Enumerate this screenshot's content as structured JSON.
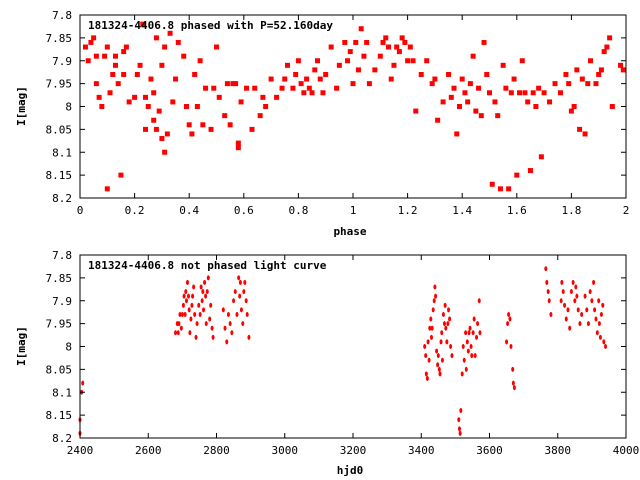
{
  "chart_data": [
    {
      "type": "scatter",
      "title": "181324-4406.8 phased with P=52.160day",
      "xlabel": "phase",
      "ylabel": "I[mag]",
      "xlim": [
        0,
        2
      ],
      "ylim": [
        8.2,
        7.8
      ],
      "y_inverted": true,
      "xticks": [
        "0",
        "0.2",
        "0.4",
        "0.6",
        "0.8",
        "1",
        "1.2",
        "1.4",
        "1.6",
        "1.8",
        "2"
      ],
      "yticks": [
        "7.8",
        "7.85",
        "7.9",
        "7.95",
        "8",
        "8.05",
        "8.1",
        "8.15",
        "8.2"
      ],
      "grid": false,
      "marker_color": "#ff0000",
      "points": [
        [
          0.02,
          7.87
        ],
        [
          0.03,
          7.9
        ],
        [
          0.04,
          7.86
        ],
        [
          0.05,
          7.85
        ],
        [
          0.06,
          7.89
        ],
        [
          0.06,
          7.95
        ],
        [
          0.07,
          7.98
        ],
        [
          0.08,
          8.0
        ],
        [
          0.09,
          7.89
        ],
        [
          0.1,
          7.87
        ],
        [
          0.1,
          8.18
        ],
        [
          0.11,
          7.97
        ],
        [
          0.12,
          7.93
        ],
        [
          0.13,
          7.91
        ],
        [
          0.13,
          7.89
        ],
        [
          0.14,
          7.95
        ],
        [
          0.15,
          8.15
        ],
        [
          0.16,
          7.93
        ],
        [
          0.16,
          7.88
        ],
        [
          0.17,
          7.87
        ],
        [
          0.18,
          7.99
        ],
        [
          0.2,
          7.98
        ],
        [
          0.21,
          7.93
        ],
        [
          0.22,
          7.91
        ],
        [
          0.23,
          7.82
        ],
        [
          0.24,
          7.98
        ],
        [
          0.24,
          8.05
        ],
        [
          0.25,
          8.0
        ],
        [
          0.26,
          7.94
        ],
        [
          0.27,
          7.97
        ],
        [
          0.27,
          8.03
        ],
        [
          0.28,
          7.85
        ],
        [
          0.28,
          8.05
        ],
        [
          0.29,
          8.01
        ],
        [
          0.3,
          7.91
        ],
        [
          0.3,
          8.07
        ],
        [
          0.31,
          7.87
        ],
        [
          0.31,
          8.1
        ],
        [
          0.32,
          8.06
        ],
        [
          0.33,
          7.84
        ],
        [
          0.34,
          7.99
        ],
        [
          0.35,
          7.94
        ],
        [
          0.36,
          7.86
        ],
        [
          0.38,
          7.89
        ],
        [
          0.39,
          8.0
        ],
        [
          0.4,
          8.04
        ],
        [
          0.41,
          8.06
        ],
        [
          0.42,
          7.93
        ],
        [
          0.43,
          8.0
        ],
        [
          0.44,
          7.9
        ],
        [
          0.45,
          8.04
        ],
        [
          0.46,
          7.96
        ],
        [
          0.48,
          8.05
        ],
        [
          0.49,
          7.96
        ],
        [
          0.5,
          7.87
        ],
        [
          0.51,
          7.98
        ],
        [
          0.53,
          8.02
        ],
        [
          0.54,
          7.95
        ],
        [
          0.55,
          8.04
        ],
        [
          0.56,
          7.95
        ],
        [
          0.57,
          7.95
        ],
        [
          0.58,
          8.08
        ],
        [
          0.58,
          8.09
        ],
        [
          0.59,
          7.99
        ],
        [
          0.61,
          7.96
        ],
        [
          0.63,
          8.05
        ],
        [
          0.64,
          7.96
        ],
        [
          0.66,
          8.02
        ],
        [
          0.67,
          7.98
        ],
        [
          0.68,
          8.0
        ],
        [
          0.7,
          7.94
        ],
        [
          0.72,
          7.98
        ],
        [
          0.74,
          7.96
        ],
        [
          0.75,
          7.94
        ],
        [
          0.76,
          7.91
        ],
        [
          0.78,
          7.96
        ],
        [
          0.79,
          7.93
        ],
        [
          0.8,
          7.9
        ],
        [
          0.81,
          7.95
        ],
        [
          0.82,
          7.97
        ],
        [
          0.83,
          7.94
        ],
        [
          0.84,
          7.96
        ],
        [
          0.85,
          7.97
        ],
        [
          0.86,
          7.92
        ],
        [
          0.87,
          7.9
        ],
        [
          0.88,
          7.94
        ],
        [
          0.89,
          7.97
        ],
        [
          0.9,
          7.93
        ],
        [
          0.92,
          7.87
        ],
        [
          0.94,
          7.96
        ],
        [
          0.95,
          7.91
        ],
        [
          0.97,
          7.86
        ],
        [
          0.98,
          7.9
        ],
        [
          0.99,
          7.88
        ],
        [
          1.0,
          7.95
        ],
        [
          1.01,
          7.86
        ],
        [
          1.02,
          7.92
        ],
        [
          1.03,
          7.83
        ],
        [
          1.04,
          7.89
        ],
        [
          1.05,
          7.86
        ],
        [
          1.06,
          7.95
        ],
        [
          1.08,
          7.92
        ],
        [
          1.1,
          7.89
        ],
        [
          1.11,
          7.86
        ],
        [
          1.12,
          7.85
        ],
        [
          1.13,
          7.87
        ],
        [
          1.14,
          7.94
        ],
        [
          1.15,
          7.91
        ],
        [
          1.16,
          7.87
        ],
        [
          1.17,
          7.88
        ],
        [
          1.18,
          7.85
        ],
        [
          1.19,
          7.86
        ],
        [
          1.2,
          7.9
        ],
        [
          1.21,
          7.87
        ],
        [
          1.22,
          7.9
        ],
        [
          1.23,
          8.01
        ],
        [
          1.25,
          7.93
        ],
        [
          1.27,
          7.9
        ],
        [
          1.29,
          7.95
        ],
        [
          1.3,
          7.94
        ],
        [
          1.31,
          8.03
        ],
        [
          1.33,
          7.99
        ],
        [
          1.35,
          7.93
        ],
        [
          1.36,
          7.98
        ],
        [
          1.37,
          7.96
        ],
        [
          1.38,
          8.06
        ],
        [
          1.39,
          8.0
        ],
        [
          1.4,
          7.94
        ],
        [
          1.41,
          7.97
        ],
        [
          1.42,
          7.99
        ],
        [
          1.43,
          7.95
        ],
        [
          1.44,
          7.89
        ],
        [
          1.45,
          8.01
        ],
        [
          1.46,
          7.96
        ],
        [
          1.47,
          8.02
        ],
        [
          1.48,
          7.86
        ],
        [
          1.49,
          7.93
        ],
        [
          1.5,
          7.97
        ],
        [
          1.51,
          8.17
        ],
        [
          1.52,
          7.99
        ],
        [
          1.53,
          8.02
        ],
        [
          1.54,
          8.18
        ],
        [
          1.55,
          7.91
        ],
        [
          1.56,
          7.96
        ],
        [
          1.57,
          8.18
        ],
        [
          1.58,
          7.97
        ],
        [
          1.59,
          7.94
        ],
        [
          1.6,
          8.15
        ],
        [
          1.61,
          7.97
        ],
        [
          1.62,
          7.9
        ],
        [
          1.63,
          7.97
        ],
        [
          1.64,
          7.99
        ],
        [
          1.65,
          8.14
        ],
        [
          1.66,
          7.97
        ],
        [
          1.67,
          8.0
        ],
        [
          1.68,
          7.96
        ],
        [
          1.69,
          8.11
        ],
        [
          1.7,
          7.97
        ],
        [
          1.72,
          7.99
        ],
        [
          1.74,
          7.95
        ],
        [
          1.76,
          7.97
        ],
        [
          1.78,
          7.93
        ],
        [
          1.79,
          7.95
        ],
        [
          1.8,
          8.01
        ],
        [
          1.81,
          8.0
        ],
        [
          1.82,
          7.92
        ],
        [
          1.83,
          8.05
        ],
        [
          1.84,
          7.94
        ],
        [
          1.85,
          8.06
        ],
        [
          1.86,
          7.95
        ],
        [
          1.87,
          7.9
        ],
        [
          1.89,
          7.95
        ],
        [
          1.9,
          7.93
        ],
        [
          1.91,
          7.92
        ],
        [
          1.92,
          7.88
        ],
        [
          1.93,
          7.87
        ],
        [
          1.94,
          7.85
        ],
        [
          1.95,
          8.0
        ],
        [
          1.98,
          7.91
        ],
        [
          1.99,
          7.92
        ]
      ]
    },
    {
      "type": "scatter",
      "title": "181324-4406.8 not phased light curve",
      "xlabel": "hjd0",
      "ylabel": "I[mag]",
      "xlim": [
        2400,
        4000
      ],
      "ylim": [
        8.2,
        7.8
      ],
      "y_inverted": true,
      "xticks": [
        "2400",
        "2600",
        "2800",
        "3000",
        "3200",
        "3400",
        "3600",
        "3800",
        "4000"
      ],
      "yticks": [
        "7.8",
        "7.85",
        "7.9",
        "7.95",
        "8",
        "8.05",
        "8.1",
        "8.15",
        "8.2"
      ],
      "grid": false,
      "marker_color": "#ff0000",
      "points": [
        [
          2400,
          8.16
        ],
        [
          2400,
          8.19
        ],
        [
          2405,
          8.1
        ],
        [
          2408,
          8.08
        ],
        [
          2680,
          7.97
        ],
        [
          2685,
          7.95
        ],
        [
          2688,
          7.97
        ],
        [
          2690,
          7.95
        ],
        [
          2693,
          7.93
        ],
        [
          2697,
          7.96
        ],
        [
          2700,
          7.93
        ],
        [
          2703,
          7.91
        ],
        [
          2705,
          7.89
        ],
        [
          2708,
          7.93
        ],
        [
          2710,
          7.88
        ],
        [
          2712,
          7.9
        ],
        [
          2715,
          7.86
        ],
        [
          2718,
          7.89
        ],
        [
          2720,
          7.92
        ],
        [
          2722,
          7.97
        ],
        [
          2725,
          7.94
        ],
        [
          2728,
          7.91
        ],
        [
          2730,
          7.89
        ],
        [
          2733,
          7.87
        ],
        [
          2736,
          7.93
        ],
        [
          2740,
          7.98
        ],
        [
          2743,
          7.95
        ],
        [
          2748,
          7.91
        ],
        [
          2752,
          7.93
        ],
        [
          2755,
          7.87
        ],
        [
          2758,
          7.9
        ],
        [
          2760,
          7.88
        ],
        [
          2762,
          7.92
        ],
        [
          2765,
          7.86
        ],
        [
          2768,
          7.89
        ],
        [
          2770,
          7.95
        ],
        [
          2773,
          7.88
        ],
        [
          2776,
          7.85
        ],
        [
          2780,
          7.94
        ],
        [
          2783,
          7.91
        ],
        [
          2787,
          7.96
        ],
        [
          2790,
          7.98
        ],
        [
          2820,
          7.92
        ],
        [
          2825,
          7.96
        ],
        [
          2830,
          7.99
        ],
        [
          2835,
          7.93
        ],
        [
          2840,
          7.95
        ],
        [
          2845,
          7.97
        ],
        [
          2850,
          7.9
        ],
        [
          2855,
          7.88
        ],
        [
          2860,
          7.93
        ],
        [
          2865,
          7.85
        ],
        [
          2868,
          7.89
        ],
        [
          2870,
          7.86
        ],
        [
          2873,
          7.92
        ],
        [
          2877,
          7.95
        ],
        [
          2880,
          7.88
        ],
        [
          2883,
          7.86
        ],
        [
          2887,
          7.9
        ],
        [
          2890,
          7.93
        ],
        [
          2895,
          7.98
        ],
        [
          3410,
          8.0
        ],
        [
          3413,
          8.02
        ],
        [
          3415,
          8.06
        ],
        [
          3418,
          8.07
        ],
        [
          3420,
          7.99
        ],
        [
          3423,
          8.03
        ],
        [
          3425,
          7.96
        ],
        [
          3428,
          7.94
        ],
        [
          3430,
          7.98
        ],
        [
          3432,
          7.96
        ],
        [
          3435,
          7.92
        ],
        [
          3438,
          7.9
        ],
        [
          3440,
          7.87
        ],
        [
          3442,
          7.89
        ],
        [
          3445,
          8.01
        ],
        [
          3448,
          8.04
        ],
        [
          3450,
          8.02
        ],
        [
          3453,
          8.05
        ],
        [
          3455,
          8.06
        ],
        [
          3458,
          7.99
        ],
        [
          3460,
          7.97
        ],
        [
          3462,
          8.03
        ],
        [
          3465,
          7.93
        ],
        [
          3468,
          7.95
        ],
        [
          3470,
          7.91
        ],
        [
          3472,
          7.96
        ],
        [
          3475,
          7.99
        ],
        [
          3478,
          7.95
        ],
        [
          3480,
          7.92
        ],
        [
          3483,
          7.94
        ],
        [
          3486,
          8.0
        ],
        [
          3490,
          8.02
        ],
        [
          3510,
          8.16
        ],
        [
          3512,
          8.18
        ],
        [
          3514,
          8.19
        ],
        [
          3516,
          8.14
        ],
        [
          3520,
          8.06
        ],
        [
          3523,
          8.0
        ],
        [
          3526,
          8.03
        ],
        [
          3530,
          7.97
        ],
        [
          3532,
          8.05
        ],
        [
          3535,
          7.99
        ],
        [
          3538,
          8.01
        ],
        [
          3540,
          7.97
        ],
        [
          3543,
          7.96
        ],
        [
          3546,
          8.0
        ],
        [
          3548,
          8.02
        ],
        [
          3552,
          7.97
        ],
        [
          3555,
          7.94
        ],
        [
          3558,
          8.02
        ],
        [
          3562,
          7.98
        ],
        [
          3565,
          7.95
        ],
        [
          3570,
          7.9
        ],
        [
          3572,
          7.97
        ],
        [
          3650,
          7.99
        ],
        [
          3653,
          7.95
        ],
        [
          3656,
          7.93
        ],
        [
          3660,
          7.94
        ],
        [
          3663,
          8.0
        ],
        [
          3668,
          8.05
        ],
        [
          3670,
          8.08
        ],
        [
          3673,
          8.09
        ],
        [
          3765,
          7.83
        ],
        [
          3768,
          7.86
        ],
        [
          3772,
          7.88
        ],
        [
          3775,
          7.9
        ],
        [
          3780,
          7.93
        ],
        [
          3810,
          7.9
        ],
        [
          3812,
          7.86
        ],
        [
          3816,
          7.88
        ],
        [
          3820,
          7.91
        ],
        [
          3825,
          7.94
        ],
        [
          3830,
          7.92
        ],
        [
          3835,
          7.96
        ],
        [
          3840,
          7.88
        ],
        [
          3845,
          7.86
        ],
        [
          3850,
          7.9
        ],
        [
          3853,
          7.87
        ],
        [
          3856,
          7.89
        ],
        [
          3860,
          7.92
        ],
        [
          3865,
          7.95
        ],
        [
          3870,
          7.93
        ],
        [
          3880,
          7.89
        ],
        [
          3885,
          7.92
        ],
        [
          3890,
          7.95
        ],
        [
          3895,
          7.88
        ],
        [
          3900,
          7.9
        ],
        [
          3905,
          7.86
        ],
        [
          3908,
          7.92
        ],
        [
          3912,
          7.94
        ],
        [
          3916,
          7.97
        ],
        [
          3920,
          7.9
        ],
        [
          3922,
          7.95
        ],
        [
          3925,
          7.98
        ],
        [
          3928,
          7.93
        ],
        [
          3932,
          7.91
        ],
        [
          3935,
          7.99
        ],
        [
          3940,
          8.0
        ]
      ]
    }
  ]
}
